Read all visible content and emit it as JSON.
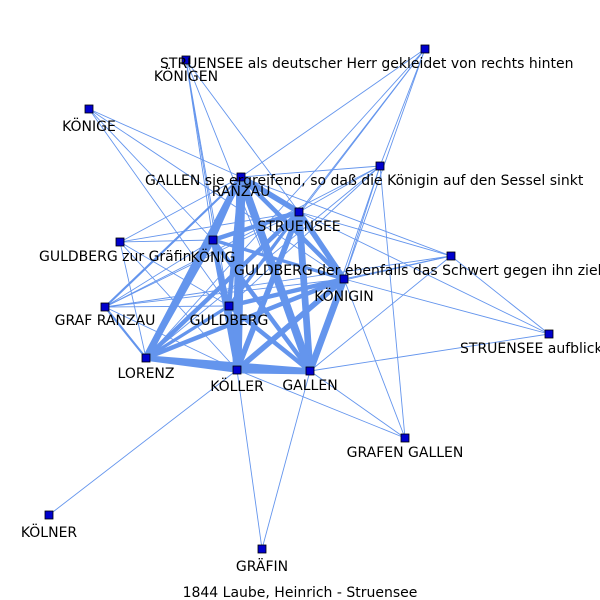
{
  "caption": "1844  Laube,  Heinrich  -  Struensee",
  "colors": {
    "edge": "#6495ED",
    "node": "#0000CD",
    "node_outline": "#000000",
    "text": "#000000",
    "background": "#ffffff"
  },
  "graph": {
    "nodes": [
      {
        "id": "struensee_herr",
        "label": "STRUENSEE als deutscher Herr gekleidet von rechts hinten"
      },
      {
        "id": "koenigen",
        "label": "KÖNIGEN"
      },
      {
        "id": "koenige",
        "label": "KÖNIGE"
      },
      {
        "id": "gallen_ergreifend",
        "label": "GALLEN sie ergreifend, so daß die Königin auf den Sessel sinkt"
      },
      {
        "id": "ranzau",
        "label": "RANZAU"
      },
      {
        "id": "struensee",
        "label": "STRUENSEE"
      },
      {
        "id": "guldberg_graefin",
        "label": "GULDBERG zur Gräfin"
      },
      {
        "id": "koenig",
        "label": "KÖNIG"
      },
      {
        "id": "guldberg_schwert",
        "label": "GULDBERG der ebenfalls das Schwert gegen ihn zieht"
      },
      {
        "id": "koenigin",
        "label": "KÖNIGIN"
      },
      {
        "id": "graf_ranzau",
        "label": "GRAF RANZAU"
      },
      {
        "id": "guldberg",
        "label": "GULDBERG"
      },
      {
        "id": "struensee_aufblickend",
        "label": "STRUENSEE aufblickend"
      },
      {
        "id": "lorenz",
        "label": "LORENZ"
      },
      {
        "id": "koeller",
        "label": "KÖLLER"
      },
      {
        "id": "gallen",
        "label": "GALLEN"
      },
      {
        "id": "grafen_gallen",
        "label": "GRAFEN GALLEN"
      },
      {
        "id": "koelner",
        "label": "KÖLNER"
      },
      {
        "id": "graefin",
        "label": "GRÄFIN"
      }
    ],
    "edges": [
      {
        "source": "ranzau",
        "target": "koeller",
        "weight": 8
      },
      {
        "source": "ranzau",
        "target": "gallen",
        "weight": 7
      },
      {
        "source": "ranzau",
        "target": "lorenz",
        "weight": 6
      },
      {
        "source": "ranzau",
        "target": "struensee",
        "weight": 5
      },
      {
        "source": "ranzau",
        "target": "koenigin",
        "weight": 4
      },
      {
        "source": "ranzau",
        "target": "guldberg",
        "weight": 4
      },
      {
        "source": "ranzau",
        "target": "koenig",
        "weight": 3
      },
      {
        "source": "ranzau",
        "target": "graf_ranzau",
        "weight": 2
      },
      {
        "source": "struensee",
        "target": "koenigin",
        "weight": 5
      },
      {
        "source": "struensee",
        "target": "gallen",
        "weight": 6
      },
      {
        "source": "struensee",
        "target": "koeller",
        "weight": 5
      },
      {
        "source": "struensee",
        "target": "lorenz",
        "weight": 4
      },
      {
        "source": "struensee",
        "target": "koenig",
        "weight": 4
      },
      {
        "source": "struensee",
        "target": "guldberg",
        "weight": 3
      },
      {
        "source": "koenigin",
        "target": "gallen",
        "weight": 6
      },
      {
        "source": "koenigin",
        "target": "koeller",
        "weight": 5
      },
      {
        "source": "koenigin",
        "target": "lorenz",
        "weight": 4
      },
      {
        "source": "koenigin",
        "target": "guldberg",
        "weight": 4
      },
      {
        "source": "koenigin",
        "target": "koenig",
        "weight": 3
      },
      {
        "source": "koeller",
        "target": "gallen",
        "weight": 6
      },
      {
        "source": "koeller",
        "target": "lorenz",
        "weight": 5
      },
      {
        "source": "koeller",
        "target": "koenig",
        "weight": 4
      },
      {
        "source": "koeller",
        "target": "guldberg",
        "weight": 4
      },
      {
        "source": "lorenz",
        "target": "gallen",
        "weight": 5
      },
      {
        "source": "lorenz",
        "target": "koenig",
        "weight": 4
      },
      {
        "source": "lorenz",
        "target": "guldberg",
        "weight": 3
      },
      {
        "source": "gallen",
        "target": "koenig",
        "weight": 4
      },
      {
        "source": "gallen",
        "target": "guldberg",
        "weight": 4
      },
      {
        "source": "koenig",
        "target": "guldberg",
        "weight": 3
      },
      {
        "source": "lorenz",
        "target": "graf_ranzau",
        "weight": 2
      },
      {
        "source": "koeller",
        "target": "graefin",
        "weight": 1
      },
      {
        "source": "koeller",
        "target": "koelner",
        "weight": 1
      },
      {
        "source": "gallen",
        "target": "graefin",
        "weight": 1
      },
      {
        "source": "gallen",
        "target": "grafen_gallen",
        "weight": 1
      },
      {
        "source": "koeller",
        "target": "grafen_gallen",
        "weight": 1
      },
      {
        "source": "koenigin",
        "target": "grafen_gallen",
        "weight": 1
      },
      {
        "source": "gallen",
        "target": "struensee_aufblickend",
        "weight": 1
      },
      {
        "source": "koenigin",
        "target": "struensee_aufblickend",
        "weight": 1
      },
      {
        "source": "struensee",
        "target": "struensee_aufblickend",
        "weight": 1
      },
      {
        "source": "guldberg_schwert",
        "target": "struensee_aufblickend",
        "weight": 1
      },
      {
        "source": "struensee_herr",
        "target": "ranzau",
        "weight": 1
      },
      {
        "source": "struensee_herr",
        "target": "struensee",
        "weight": 1
      },
      {
        "source": "struensee_herr",
        "target": "koenigin",
        "weight": 1
      },
      {
        "source": "struensee_herr",
        "target": "guldberg",
        "weight": 1
      },
      {
        "source": "struensee_herr",
        "target": "gallen_ergreifend",
        "weight": 1
      },
      {
        "source": "koenigen",
        "target": "guldberg",
        "weight": 1
      },
      {
        "source": "koenigen",
        "target": "koenig",
        "weight": 1
      },
      {
        "source": "koenigen",
        "target": "gallen",
        "weight": 1
      },
      {
        "source": "koenigen",
        "target": "koeller",
        "weight": 1
      },
      {
        "source": "koenigen",
        "target": "struensee",
        "weight": 1
      },
      {
        "source": "koenige",
        "target": "ranzau",
        "weight": 1
      },
      {
        "source": "koenige",
        "target": "koenig",
        "weight": 1
      },
      {
        "source": "koenige",
        "target": "koenigin",
        "weight": 1
      },
      {
        "source": "koenige",
        "target": "guldberg",
        "weight": 1
      },
      {
        "source": "gallen_ergreifend",
        "target": "ranzau",
        "weight": 1
      },
      {
        "source": "gallen_ergreifend",
        "target": "struensee",
        "weight": 1
      },
      {
        "source": "gallen_ergreifend",
        "target": "koenigin",
        "weight": 1
      },
      {
        "source": "gallen_ergreifend",
        "target": "gallen",
        "weight": 1
      },
      {
        "source": "gallen_ergreifend",
        "target": "guldberg",
        "weight": 1
      },
      {
        "source": "gallen_ergreifend",
        "target": "graf_ranzau",
        "weight": 1
      },
      {
        "source": "gallen_ergreifend",
        "target": "grafen_gallen",
        "weight": 1
      },
      {
        "source": "guldberg_graefin",
        "target": "ranzau",
        "weight": 1
      },
      {
        "source": "guldberg_graefin",
        "target": "koenig",
        "weight": 1
      },
      {
        "source": "guldberg_graefin",
        "target": "guldberg",
        "weight": 1
      },
      {
        "source": "guldberg_graefin",
        "target": "koeller",
        "weight": 1
      },
      {
        "source": "guldberg_graefin",
        "target": "lorenz",
        "weight": 1
      },
      {
        "source": "guldberg_graefin",
        "target": "struensee",
        "weight": 1
      },
      {
        "source": "guldberg_schwert",
        "target": "struensee",
        "weight": 1
      },
      {
        "source": "guldberg_schwert",
        "target": "ranzau",
        "weight": 1
      },
      {
        "source": "guldberg_schwert",
        "target": "koenigin",
        "weight": 1
      },
      {
        "source": "guldberg_schwert",
        "target": "gallen",
        "weight": 1
      },
      {
        "source": "guldberg_schwert",
        "target": "guldberg",
        "weight": 1
      },
      {
        "source": "guldberg_schwert",
        "target": "graf_ranzau",
        "weight": 1
      },
      {
        "source": "graf_ranzau",
        "target": "guldberg",
        "weight": 1
      },
      {
        "source": "graf_ranzau",
        "target": "koenig",
        "weight": 1
      },
      {
        "source": "graf_ranzau",
        "target": "koeller",
        "weight": 1
      },
      {
        "source": "graf_ranzau",
        "target": "struensee",
        "weight": 1
      },
      {
        "source": "graf_ranzau",
        "target": "koenigin",
        "weight": 1
      },
      {
        "source": "struensee_herr",
        "target": "lorenz",
        "weight": 1
      },
      {
        "source": "gallen_ergreifend",
        "target": "lorenz",
        "weight": 1
      }
    ]
  }
}
